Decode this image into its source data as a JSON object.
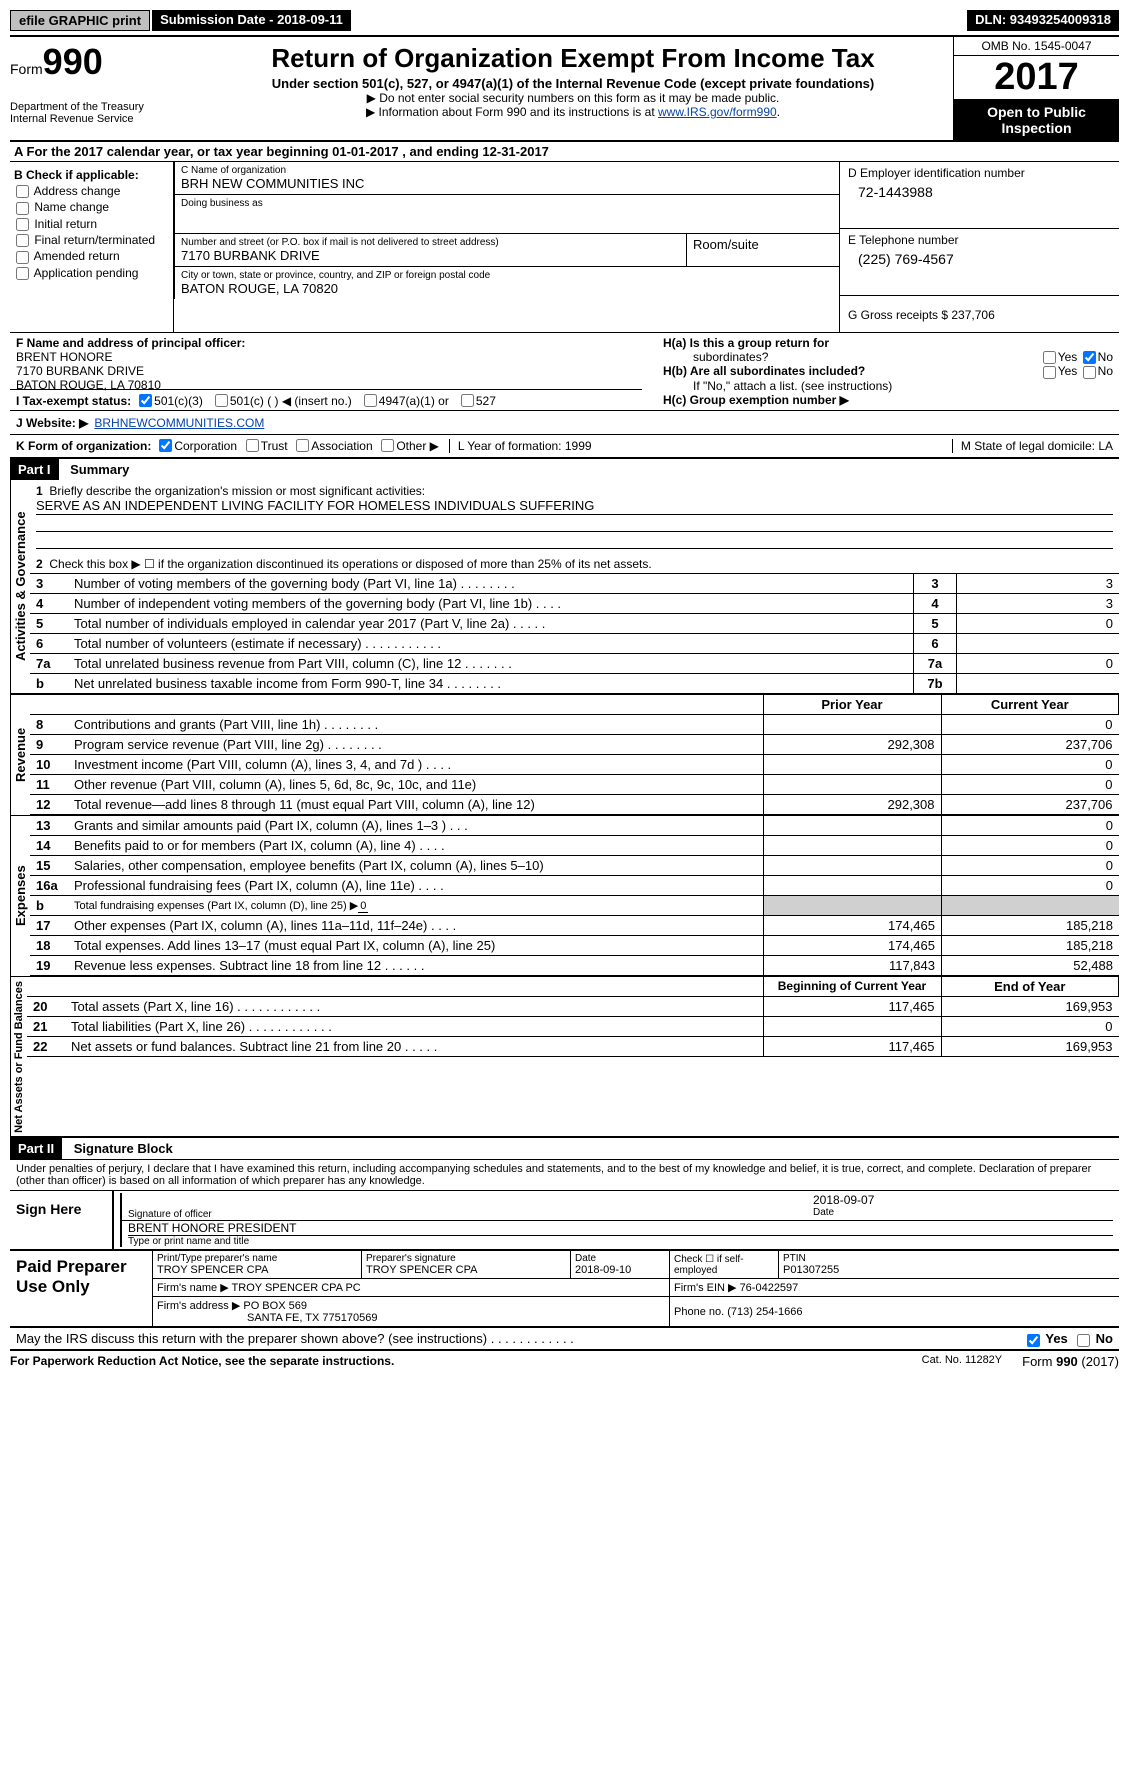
{
  "topbar": {
    "efile": "efile GRAPHIC print",
    "sub_label": "Submission Date - 2018-09-11",
    "dln_label": "DLN: 93493254009318"
  },
  "header": {
    "form_label": "Form",
    "form_num": "990",
    "dept": "Department of the Treasury",
    "irs": "Internal Revenue Service",
    "title": "Return of Organization Exempt From Income Tax",
    "subtitle": "Under section 501(c), 527, or 4947(a)(1) of the Internal Revenue Code (except private foundations)",
    "note1": "▶ Do not enter social security numbers on this form as it may be made public.",
    "note2_pre": "▶ Information about Form 990 and its instructions is at ",
    "note2_link": "www.IRS.gov/form990",
    "omb": "OMB No. 1545-0047",
    "year": "2017",
    "inspect": "Open to Public Inspection"
  },
  "sectionA": "A  For the 2017 calendar year, or tax year beginning 01-01-2017   , and ending 12-31-2017",
  "colB": {
    "title": "B Check if applicable:",
    "items": [
      "Address change",
      "Name change",
      "Initial return",
      "Final return/terminated",
      "Amended return",
      "Application pending"
    ]
  },
  "colC": {
    "name_lbl": "C Name of organization",
    "name": "BRH NEW COMMUNITIES INC",
    "dba_lbl": "Doing business as",
    "dba": "",
    "addr_lbl": "Number and street (or P.O. box if mail is not delivered to street address)",
    "addr": "7170 BURBANK DRIVE",
    "room_lbl": "Room/suite",
    "city_lbl": "City or town, state or province, country, and ZIP or foreign postal code",
    "city": "BATON ROUGE, LA   70820"
  },
  "colD": {
    "ein_lbl": "D Employer identification number",
    "ein": "72-1443988",
    "tel_lbl": "E Telephone number",
    "tel": "(225) 769-4567",
    "gross_lbl": "G Gross receipts $ 237,706"
  },
  "rowF": {
    "f_lbl": "F  Name and address of principal officer:",
    "f_name": "BRENT HONORE",
    "f_addr1": "7170 BURBANK DRIVE",
    "f_addr2": "BATON ROUGE, LA   70810",
    "ha": "H(a)  Is this a group return for",
    "ha2": "subordinates?",
    "hb": "H(b)  Are all subordinates included?",
    "hb_note": "If \"No,\" attach a list. (see instructions)",
    "hc": "H(c)  Group exemption number ▶",
    "yes": "Yes",
    "no": "No"
  },
  "taxStatus": {
    "label": "I  Tax-exempt status:",
    "opt1": "501(c)(3)",
    "opt2": "501(c) (   ) ◀ (insert no.)",
    "opt3": "4947(a)(1) or",
    "opt4": "527"
  },
  "website": {
    "label": "J  Website: ▶",
    "url": "BRHNEWCOMMUNITIES.COM"
  },
  "formOrg": {
    "label": "K Form of organization:",
    "opt1": "Corporation",
    "opt2": "Trust",
    "opt3": "Association",
    "opt4": "Other ▶",
    "year_lbl": "L Year of formation: 1999",
    "state_lbl": "M State of legal domicile: LA"
  },
  "part1": {
    "header": "Part I",
    "title": "Summary"
  },
  "governance": {
    "vert": "Activities & Governance",
    "line1": "Briefly describe the organization's mission or most significant activities:",
    "mission": "SERVE AS AN INDEPENDENT LIVING FACILITY FOR HOMELESS INDIVIDUALS SUFFERING",
    "line2": "Check this box ▶ ☐  if the organization discontinued its operations or disposed of more than 25% of its net assets.",
    "rows": [
      {
        "n": "3",
        "t": "Number of voting members of the governing body (Part VI, line 1a)  .    .    .    .    .    .    .    .",
        "nn": "3",
        "v": "3"
      },
      {
        "n": "4",
        "t": "Number of independent voting members of the governing body (Part VI, line 1b)   .    .    .    .",
        "nn": "4",
        "v": "3"
      },
      {
        "n": "5",
        "t": "Total number of individuals employed in calendar year 2017 (Part V, line 2a)    .    .    .    .    .",
        "nn": "5",
        "v": "0"
      },
      {
        "n": "6",
        "t": "Total number of volunteers (estimate if necessary)   .    .    .    .    .    .    .    .    .    .    .",
        "nn": "6",
        "v": ""
      },
      {
        "n": "7a",
        "t": "Total unrelated business revenue from Part VIII, column (C), line 12   .    .    .    .    .    .    .",
        "nn": "7a",
        "v": "0"
      },
      {
        "n": "b",
        "t": "Net unrelated business taxable income from Form 990-T, line 34   .    .    .    .    .    .    .    .",
        "nn": "7b",
        "v": ""
      }
    ]
  },
  "revenue": {
    "vert": "Revenue",
    "prior_h": "Prior Year",
    "curr_h": "Current Year",
    "rows": [
      {
        "n": "8",
        "t": "Contributions and grants (Part VIII, line 1h)   .    .    .    .    .    .    .    .",
        "p": "",
        "c": "0"
      },
      {
        "n": "9",
        "t": "Program service revenue (Part VIII, line 2g)   .    .    .    .    .    .    .    .",
        "p": "292,308",
        "c": "237,706"
      },
      {
        "n": "10",
        "t": "Investment income (Part VIII, column (A), lines 3, 4, and 7d )   .    .    .    .",
        "p": "",
        "c": "0"
      },
      {
        "n": "11",
        "t": "Other revenue (Part VIII, column (A), lines 5, 6d, 8c, 9c, 10c, and 11e)",
        "p": "",
        "c": "0"
      },
      {
        "n": "12",
        "t": "Total revenue—add lines 8 through 11 (must equal Part VIII, column (A), line 12)",
        "p": "292,308",
        "c": "237,706"
      }
    ]
  },
  "expenses": {
    "vert": "Expenses",
    "rows": [
      {
        "n": "13",
        "t": "Grants and similar amounts paid (Part IX, column (A), lines 1–3 )   .    .    .",
        "p": "",
        "c": "0"
      },
      {
        "n": "14",
        "t": "Benefits paid to or for members (Part IX, column (A), line 4)   .    .    .    .",
        "p": "",
        "c": "0"
      },
      {
        "n": "15",
        "t": "Salaries, other compensation, employee benefits (Part IX, column (A), lines 5–10)",
        "p": "",
        "c": "0"
      },
      {
        "n": "16a",
        "t": "Professional fundraising fees (Part IX, column (A), line 11e)   .    .    .    .",
        "p": "",
        "c": "0"
      }
    ],
    "line16b_n": "b",
    "line16b": "Total fundraising expenses (Part IX, column (D), line 25) ▶",
    "line16b_val": "0",
    "rows2": [
      {
        "n": "17",
        "t": "Other expenses (Part IX, column (A), lines 11a–11d, 11f–24e)   .    .    .    .",
        "p": "174,465",
        "c": "185,218"
      },
      {
        "n": "18",
        "t": "Total expenses. Add lines 13–17 (must equal Part IX, column (A), line 25)",
        "p": "174,465",
        "c": "185,218"
      },
      {
        "n": "19",
        "t": "Revenue less expenses. Subtract line 18 from line 12   .    .    .    .    .    .",
        "p": "117,843",
        "c": "52,488"
      }
    ]
  },
  "netassets": {
    "vert": "Net Assets or Fund Balances",
    "begin_h": "Beginning of Current Year",
    "end_h": "End of Year",
    "rows": [
      {
        "n": "20",
        "t": "Total assets (Part X, line 16)  .    .    .    .    .    .    .    .    .    .    .    .",
        "p": "117,465",
        "c": "169,953"
      },
      {
        "n": "21",
        "t": "Total liabilities (Part X, line 26)  .    .    .    .    .    .    .    .    .    .    .    .",
        "p": "",
        "c": "0"
      },
      {
        "n": "22",
        "t": "Net assets or fund balances. Subtract line 21 from line 20 .    .    .    .    .",
        "p": "117,465",
        "c": "169,953"
      }
    ]
  },
  "part2": {
    "header": "Part II",
    "title": "Signature Block"
  },
  "sig": {
    "perjury": "Under penalties of perjury, I declare that I have examined this return, including accompanying schedules and statements, and to the best of my knowledge and belief, it is true, correct, and complete. Declaration of preparer (other than officer) is based on all information of which preparer has any knowledge.",
    "sign_here": "Sign Here",
    "sig_officer": "Signature of officer",
    "date_lbl": "Date",
    "sig_date": "2018-09-07",
    "name_title": "BRENT HONORE PRESIDENT",
    "name_lbl": "Type or print name and title"
  },
  "preparer": {
    "label": "Paid Preparer Use Only",
    "print_lbl": "Print/Type preparer's name",
    "print_val": "TROY SPENCER CPA",
    "sig_lbl": "Preparer's signature",
    "sig_val": "TROY SPENCER CPA",
    "date_lbl": "Date",
    "date_val": "2018-09-10",
    "check_lbl": "Check ☐ if self-employed",
    "ptin_lbl": "PTIN",
    "ptin": "P01307255",
    "firm_name_lbl": "Firm's name      ▶",
    "firm_name": "TROY SPENCER CPA PC",
    "firm_ein_lbl": "Firm's EIN ▶",
    "firm_ein": "76-0422597",
    "firm_addr_lbl": "Firm's address ▶",
    "firm_addr1": "PO BOX 569",
    "firm_addr2": "SANTA FE, TX   775170569",
    "phone_lbl": "Phone no.",
    "phone": "(713) 254-1666"
  },
  "discuss": {
    "text": "May the IRS discuss this return with the preparer shown above? (see instructions)   .    .    .    .    .    .    .    .    .    .    .    .",
    "yes": "Yes",
    "no": "No"
  },
  "footer": {
    "left": "For Paperwork Reduction Act Notice, see the separate instructions.",
    "mid": "Cat. No. 11282Y",
    "right": "Form 990 (2017)"
  }
}
